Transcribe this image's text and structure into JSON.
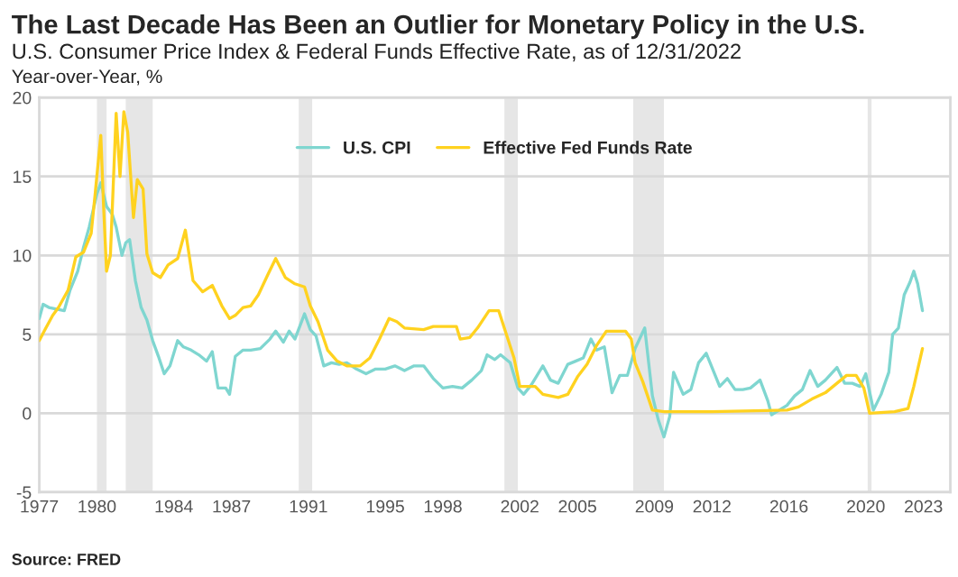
{
  "chart_data": {
    "type": "line",
    "title": "The Last Decade Has Been an Outlier for Monetary Policy in the U.S.",
    "subtitle": "U.S. Consumer Price Index & Federal Funds Effective Rate, as of 12/31/2022",
    "ylabel": "Year-over-Year, %",
    "annotations": [
      "Source: FRED"
    ],
    "series": [
      {
        "name": "U.S. CPI",
        "color": "#7fd6d0",
        "x": [
          1977.0,
          1977.2,
          1977.5,
          1977.9,
          1978.3,
          1978.6,
          1979.0,
          1979.3,
          1979.6,
          1980.0,
          1980.2,
          1980.5,
          1980.8,
          1981.0,
          1981.3,
          1981.5,
          1981.7,
          1982.0,
          1982.3,
          1982.6,
          1982.9,
          1983.2,
          1983.5,
          1983.8,
          1984.2,
          1984.5,
          1984.9,
          1985.3,
          1985.7,
          1986.0,
          1986.3,
          1986.7,
          1986.9,
          1987.2,
          1987.6,
          1988.0,
          1988.5,
          1989.0,
          1989.3,
          1989.7,
          1990.0,
          1990.3,
          1990.8,
          1991.1,
          1991.4,
          1991.8,
          1992.2,
          1992.6,
          1993.0,
          1993.5,
          1994.0,
          1994.5,
          1995.0,
          1995.5,
          1996.0,
          1996.5,
          1997.0,
          1997.5,
          1998.0,
          1998.5,
          1999.0,
          1999.5,
          2000.0,
          2000.3,
          2000.7,
          2001.0,
          2001.5,
          2001.9,
          2002.2,
          2002.6,
          2002.9,
          2003.2,
          2003.6,
          2004.0,
          2004.5,
          2004.9,
          2005.3,
          2005.7,
          2006.0,
          2006.4,
          2006.8,
          2007.2,
          2007.6,
          2008.0,
          2008.5,
          2008.9,
          2009.2,
          2009.5,
          2009.8,
          2010.0,
          2010.5,
          2010.9,
          2011.3,
          2011.7,
          2012.0,
          2012.4,
          2012.8,
          2013.2,
          2013.6,
          2014.0,
          2014.5,
          2014.9,
          2015.1,
          2015.5,
          2015.9,
          2016.3,
          2016.7,
          2017.1,
          2017.5,
          2017.9,
          2018.5,
          2018.9,
          2019.3,
          2019.7,
          2020.0,
          2020.4,
          2020.8,
          2021.2,
          2021.4,
          2021.7,
          2022.0,
          2022.3,
          2022.5,
          2022.7,
          2022.95
        ],
        "values": [
          6.0,
          6.9,
          6.7,
          6.6,
          6.5,
          7.8,
          9.0,
          10.5,
          11.8,
          13.9,
          14.6,
          13.1,
          12.6,
          11.8,
          10.0,
          10.8,
          11.0,
          8.4,
          6.7,
          5.9,
          4.6,
          3.6,
          2.5,
          3.0,
          4.6,
          4.2,
          4.0,
          3.7,
          3.3,
          3.9,
          1.6,
          1.6,
          1.2,
          3.6,
          4.0,
          4.0,
          4.1,
          4.7,
          5.2,
          4.5,
          5.2,
          4.7,
          6.3,
          5.3,
          4.9,
          3.0,
          3.2,
          3.1,
          3.2,
          2.8,
          2.5,
          2.8,
          2.8,
          3.0,
          2.7,
          3.0,
          3.0,
          2.2,
          1.6,
          1.7,
          1.6,
          2.1,
          2.7,
          3.7,
          3.4,
          3.7,
          3.2,
          1.6,
          1.2,
          1.8,
          2.4,
          3.0,
          2.1,
          1.9,
          3.1,
          3.3,
          3.5,
          4.7,
          4.0,
          4.2,
          1.3,
          2.4,
          2.4,
          4.1,
          5.4,
          1.1,
          -0.4,
          -1.5,
          -0.2,
          2.6,
          1.2,
          1.5,
          3.2,
          3.8,
          2.9,
          1.7,
          2.2,
          1.5,
          1.5,
          1.6,
          2.1,
          0.8,
          -0.1,
          0.2,
          0.5,
          1.1,
          1.5,
          2.7,
          1.7,
          2.1,
          2.9,
          1.9,
          1.9,
          1.7,
          2.5,
          0.2,
          1.2,
          2.6,
          5.0,
          5.4,
          7.5,
          8.3,
          9.0,
          8.2,
          6.5
        ]
      },
      {
        "name": "Effective Fed Funds Rate",
        "color": "#ffd21f",
        "x": [
          1977.0,
          1977.3,
          1977.7,
          1978.0,
          1978.5,
          1978.9,
          1979.3,
          1979.7,
          1979.9,
          1980.2,
          1980.35,
          1980.5,
          1980.7,
          1981.0,
          1981.2,
          1981.4,
          1981.6,
          1981.9,
          1982.1,
          1982.4,
          1982.6,
          1982.9,
          1983.3,
          1983.7,
          1984.2,
          1984.6,
          1985.0,
          1985.5,
          1986.0,
          1986.5,
          1986.9,
          1987.2,
          1987.6,
          1988.0,
          1988.4,
          1988.9,
          1989.3,
          1989.8,
          1990.3,
          1990.8,
          1991.1,
          1991.5,
          1992.0,
          1992.5,
          1993.0,
          1993.7,
          1994.2,
          1994.7,
          1995.2,
          1995.6,
          1996.0,
          1997.0,
          1997.5,
          1998.7,
          1998.9,
          1999.4,
          1999.8,
          2000.4,
          2000.9,
          2001.3,
          2001.7,
          2002.0,
          2002.8,
          2003.2,
          2004.0,
          2004.5,
          2005.0,
          2005.5,
          2006.0,
          2006.5,
          2007.5,
          2007.8,
          2008.0,
          2008.4,
          2008.9,
          2009.5,
          2012.0,
          2015.9,
          2016.5,
          2017.2,
          2017.9,
          2018.5,
          2019.0,
          2019.5,
          2019.9,
          2020.2,
          2021.5,
          2022.2,
          2022.5,
          2022.95
        ],
        "values": [
          4.6,
          5.3,
          6.2,
          6.7,
          7.8,
          9.9,
          10.2,
          11.4,
          13.8,
          17.6,
          13.0,
          9.0,
          10.0,
          19.0,
          15.0,
          19.1,
          17.8,
          12.4,
          14.8,
          14.2,
          10.1,
          8.9,
          8.6,
          9.4,
          9.8,
          11.6,
          8.4,
          7.7,
          8.1,
          6.8,
          6.0,
          6.2,
          6.7,
          6.8,
          7.5,
          8.8,
          9.8,
          8.6,
          8.2,
          8.0,
          6.8,
          5.8,
          4.0,
          3.3,
          3.0,
          3.0,
          3.5,
          4.7,
          6.0,
          5.8,
          5.4,
          5.3,
          5.5,
          5.5,
          4.7,
          4.8,
          5.4,
          6.5,
          6.5,
          5.0,
          3.5,
          1.7,
          1.7,
          1.2,
          1.0,
          1.2,
          2.3,
          3.1,
          4.3,
          5.2,
          5.2,
          4.7,
          3.2,
          2.0,
          0.2,
          0.1,
          0.1,
          0.2,
          0.4,
          0.9,
          1.3,
          1.9,
          2.4,
          2.4,
          1.6,
          0.0,
          0.1,
          0.3,
          1.7,
          4.1
        ]
      }
    ],
    "bands": [
      {
        "axis": "x",
        "from": 1980.0,
        "to": 1980.5,
        "color": "#e6e6e6"
      },
      {
        "axis": "x",
        "from": 1981.5,
        "to": 1982.9,
        "color": "#e6e6e6"
      },
      {
        "axis": "x",
        "from": 1990.5,
        "to": 1991.2,
        "color": "#e6e6e6"
      },
      {
        "axis": "x",
        "from": 2001.2,
        "to": 2001.9,
        "color": "#e6e6e6"
      },
      {
        "axis": "x",
        "from": 2007.9,
        "to": 2009.5,
        "color": "#e6e6e6"
      },
      {
        "axis": "x",
        "from": 2020.1,
        "to": 2020.3,
        "color": "#e6e6e6"
      }
    ],
    "xlim": [
      1977.0,
      2024.4
    ],
    "xticks": [
      1977,
      1980,
      1984,
      1987,
      1991,
      1995,
      1998,
      2002,
      2005,
      2009,
      2012,
      2016,
      2020,
      2023
    ],
    "ylim": [
      -5,
      20
    ],
    "yticks": [
      -5,
      0,
      5,
      10,
      15,
      20
    ],
    "grid": "y",
    "legend": "top",
    "marker": "none",
    "line_style": "solid"
  }
}
